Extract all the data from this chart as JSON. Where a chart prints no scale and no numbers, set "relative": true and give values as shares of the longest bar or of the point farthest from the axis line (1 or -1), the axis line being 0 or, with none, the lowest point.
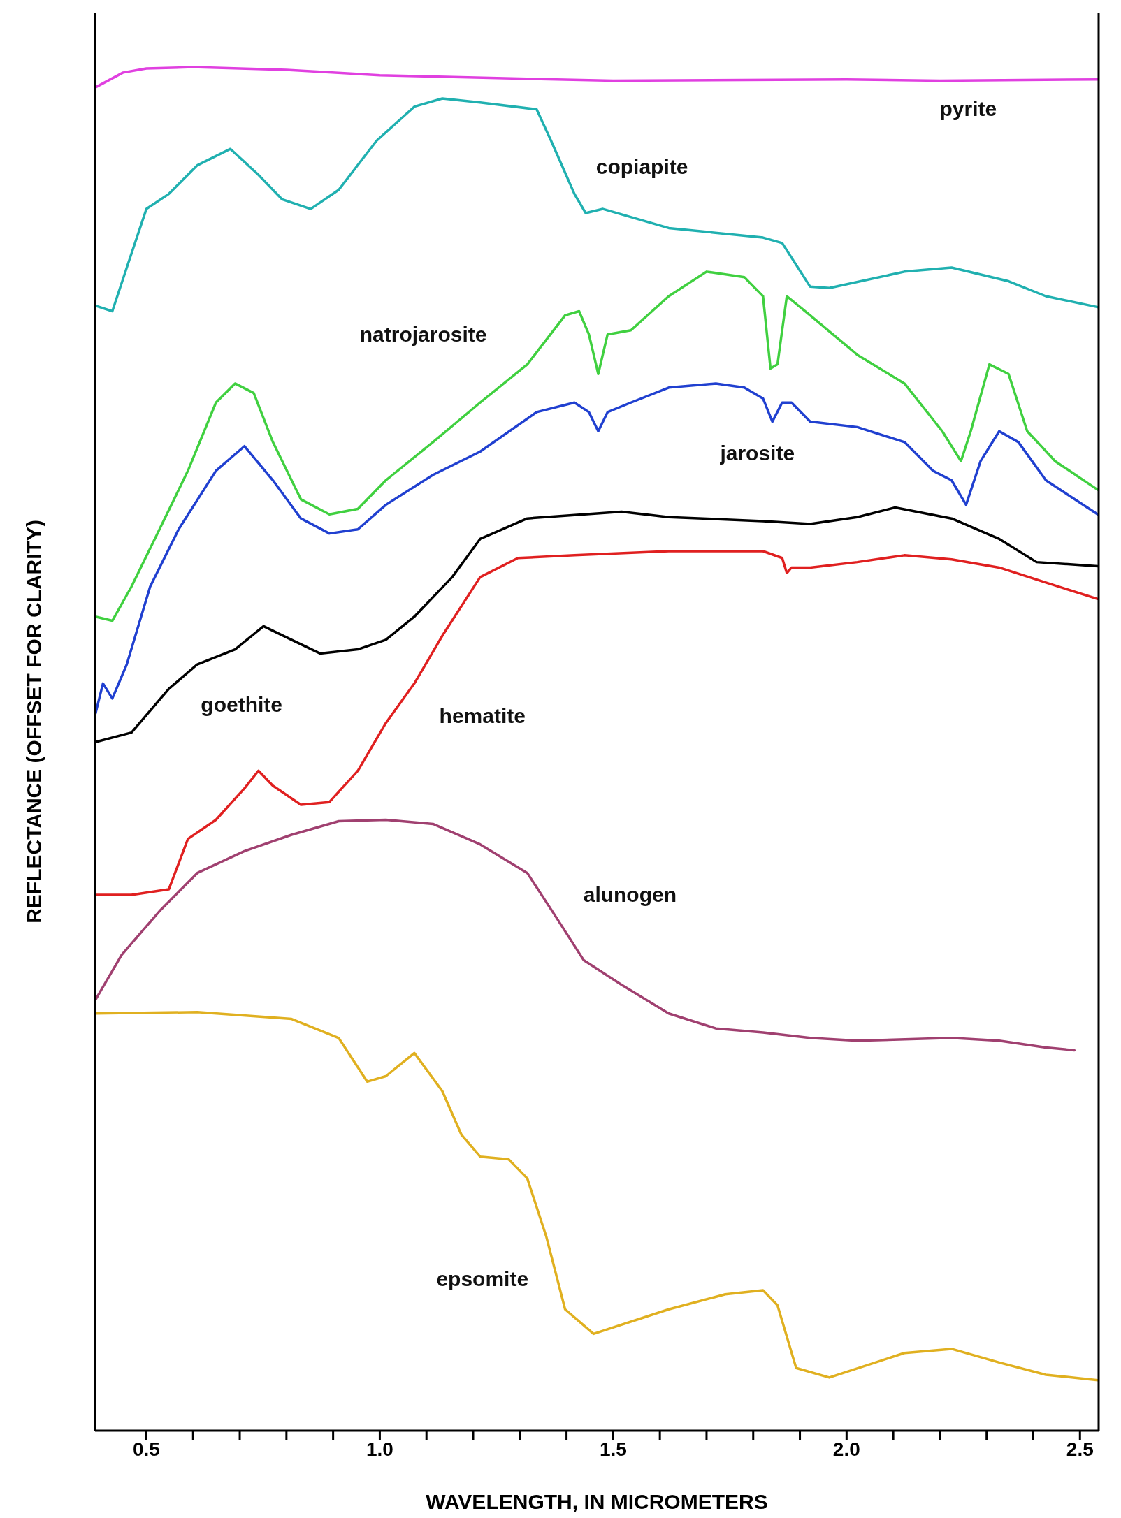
{
  "chart_data": {
    "type": "line",
    "relative": true,
    "xlabel": "WAVELENGTH, IN MICROMETERS",
    "ylabel": "REFLECTANCE (OFFSET FOR CLARITY)",
    "xlim": [
      0.39,
      2.54
    ],
    "xticks": [
      0.5,
      {
        "value": 0.6,
        "label": null
      },
      {
        "value": 0.7,
        "label": null
      },
      {
        "value": 0.8,
        "label": null
      },
      {
        "value": 0.9,
        "label": null
      },
      {
        "value": 1,
        "label": "1.0"
      },
      {
        "value": 1.1,
        "label": null
      },
      {
        "value": 1.2,
        "label": null
      },
      {
        "value": 1.3,
        "label": null
      },
      {
        "value": 1.4,
        "label": null
      },
      1.5,
      {
        "value": 1.6,
        "label": null
      },
      {
        "value": 1.7,
        "label": null
      },
      {
        "value": 1.8,
        "label": null
      },
      {
        "value": 1.9,
        "label": null
      },
      {
        "value": 2,
        "label": "2.0"
      },
      {
        "value": 2.1,
        "label": null
      },
      {
        "value": 2.2,
        "label": null
      },
      {
        "value": 2.3,
        "label": null
      },
      {
        "value": 2.4,
        "label": null
      },
      2.5
    ],
    "grid": false,
    "legend": false,
    "series": [
      {
        "name": "pyrite",
        "color": "#e040e0",
        "x": [
          0.39,
          0.45,
          0.5,
          0.6,
          0.8,
          1.0,
          1.5,
          2.0,
          2.2,
          2.54
        ],
        "values": [
          0.985,
          0.996,
          0.999,
          1.0,
          0.998,
          0.994,
          0.99,
          0.991,
          0.99,
          0.991
        ]
      },
      {
        "name": "copiapite",
        "color": "#20b0b0",
        "x": [
          0.391,
          0.427,
          0.458,
          0.5,
          0.548,
          0.609,
          0.68,
          0.74,
          0.791,
          0.852,
          0.912,
          0.993,
          1.074,
          1.134,
          1.215,
          1.336,
          1.367,
          1.417,
          1.441,
          1.478,
          1.619,
          1.821,
          1.862,
          1.922,
          1.963,
          2.124,
          2.225,
          2.347,
          2.427,
          2.538
        ],
        "values": [
          0.825,
          0.821,
          0.853,
          0.896,
          0.907,
          0.928,
          0.94,
          0.921,
          0.903,
          0.896,
          0.91,
          0.946,
          0.971,
          0.977,
          0.974,
          0.969,
          0.946,
          0.907,
          0.893,
          0.896,
          0.882,
          0.875,
          0.871,
          0.839,
          0.838,
          0.85,
          0.853,
          0.843,
          0.832,
          0.824
        ]
      },
      {
        "name": "natrojarosite",
        "color": "#40d040",
        "x": [
          0.391,
          0.427,
          0.468,
          0.528,
          0.589,
          0.649,
          0.69,
          0.73,
          0.771,
          0.831,
          0.892,
          0.953,
          1.013,
          1.114,
          1.215,
          1.316,
          1.397,
          1.427,
          1.448,
          1.468,
          1.488,
          1.538,
          1.619,
          1.7,
          1.781,
          1.821,
          1.837,
          1.852,
          1.872,
          1.922,
          2.023,
          2.124,
          2.205,
          2.245,
          2.266,
          2.306,
          2.347,
          2.387,
          2.447,
          2.538
        ],
        "values": [
          0.597,
          0.594,
          0.619,
          0.661,
          0.704,
          0.754,
          0.768,
          0.761,
          0.725,
          0.683,
          0.672,
          0.676,
          0.697,
          0.725,
          0.754,
          0.782,
          0.818,
          0.821,
          0.804,
          0.775,
          0.804,
          0.807,
          0.832,
          0.85,
          0.846,
          0.832,
          0.779,
          0.782,
          0.832,
          0.818,
          0.789,
          0.768,
          0.733,
          0.711,
          0.733,
          0.782,
          0.775,
          0.733,
          0.711,
          0.69
        ]
      },
      {
        "name": "jarosite",
        "color": "#2040d0",
        "x": [
          0.391,
          0.407,
          0.427,
          0.458,
          0.508,
          0.569,
          0.649,
          0.71,
          0.771,
          0.831,
          0.892,
          0.953,
          1.013,
          1.114,
          1.215,
          1.336,
          1.417,
          1.448,
          1.468,
          1.488,
          1.538,
          1.619,
          1.72,
          1.781,
          1.821,
          1.841,
          1.862,
          1.882,
          1.922,
          2.023,
          2.124,
          2.185,
          2.225,
          2.256,
          2.287,
          2.327,
          2.368,
          2.427,
          2.538
        ],
        "values": [
          0.526,
          0.548,
          0.537,
          0.562,
          0.619,
          0.661,
          0.704,
          0.722,
          0.697,
          0.669,
          0.658,
          0.661,
          0.679,
          0.701,
          0.718,
          0.747,
          0.754,
          0.747,
          0.733,
          0.747,
          0.754,
          0.765,
          0.768,
          0.765,
          0.757,
          0.74,
          0.754,
          0.754,
          0.74,
          0.736,
          0.725,
          0.704,
          0.697,
          0.679,
          0.711,
          0.733,
          0.725,
          0.697,
          0.672
        ]
      },
      {
        "name": "goethite",
        "color": "#000000",
        "x": [
          0.391,
          0.468,
          0.548,
          0.609,
          0.69,
          0.751,
          0.811,
          0.872,
          0.953,
          1.013,
          1.074,
          1.155,
          1.215,
          1.316,
          1.518,
          1.619,
          1.821,
          1.922,
          2.023,
          2.104,
          2.225,
          2.327,
          2.407,
          2.538
        ],
        "values": [
          0.505,
          0.512,
          0.544,
          0.562,
          0.573,
          0.59,
          0.58,
          0.57,
          0.573,
          0.58,
          0.597,
          0.626,
          0.654,
          0.669,
          0.674,
          0.67,
          0.667,
          0.665,
          0.67,
          0.677,
          0.669,
          0.654,
          0.637,
          0.634
        ]
      },
      {
        "name": "hematite",
        "color": "#e02020",
        "x": [
          0.391,
          0.468,
          0.548,
          0.589,
          0.649,
          0.71,
          0.74,
          0.771,
          0.831,
          0.892,
          0.953,
          1.013,
          1.074,
          1.134,
          1.215,
          1.296,
          1.417,
          1.619,
          1.821,
          1.862,
          1.872,
          1.882,
          1.922,
          2.023,
          2.124,
          2.225,
          2.327,
          2.427,
          2.538
        ],
        "values": [
          0.393,
          0.393,
          0.397,
          0.434,
          0.448,
          0.471,
          0.484,
          0.473,
          0.459,
          0.461,
          0.484,
          0.519,
          0.548,
          0.583,
          0.626,
          0.64,
          0.642,
          0.645,
          0.645,
          0.64,
          0.629,
          0.633,
          0.633,
          0.637,
          0.642,
          0.639,
          0.633,
          0.622,
          0.61
        ]
      },
      {
        "name": "alunogen",
        "color": "#a04070",
        "x": [
          0.391,
          0.447,
          0.528,
          0.609,
          0.71,
          0.811,
          0.912,
          1.013,
          1.114,
          1.215,
          1.316,
          1.377,
          1.437,
          1.518,
          1.619,
          1.72,
          1.821,
          1.922,
          2.023,
          2.225,
          2.327,
          2.427,
          2.488
        ],
        "values": [
          0.316,
          0.349,
          0.381,
          0.409,
          0.425,
          0.437,
          0.447,
          0.448,
          0.445,
          0.43,
          0.409,
          0.377,
          0.345,
          0.327,
          0.306,
          0.295,
          0.292,
          0.288,
          0.286,
          0.288,
          0.286,
          0.281,
          0.279
        ]
      },
      {
        "name": "epsomite",
        "color": "#e0b020",
        "x": [
          0.391,
          0.609,
          0.811,
          0.912,
          0.973,
          1.013,
          1.074,
          1.134,
          1.175,
          1.215,
          1.276,
          1.316,
          1.357,
          1.397,
          1.458,
          1.619,
          1.74,
          1.821,
          1.852,
          1.892,
          1.963,
          2.124,
          2.225,
          2.327,
          2.427,
          2.538
        ],
        "values": [
          0.306,
          0.307,
          0.302,
          0.288,
          0.256,
          0.26,
          0.277,
          0.249,
          0.217,
          0.201,
          0.199,
          0.185,
          0.142,
          0.089,
          0.071,
          0.089,
          0.1,
          0.103,
          0.092,
          0.046,
          0.039,
          0.057,
          0.06,
          0.05,
          0.041,
          0.037
        ]
      }
    ]
  }
}
